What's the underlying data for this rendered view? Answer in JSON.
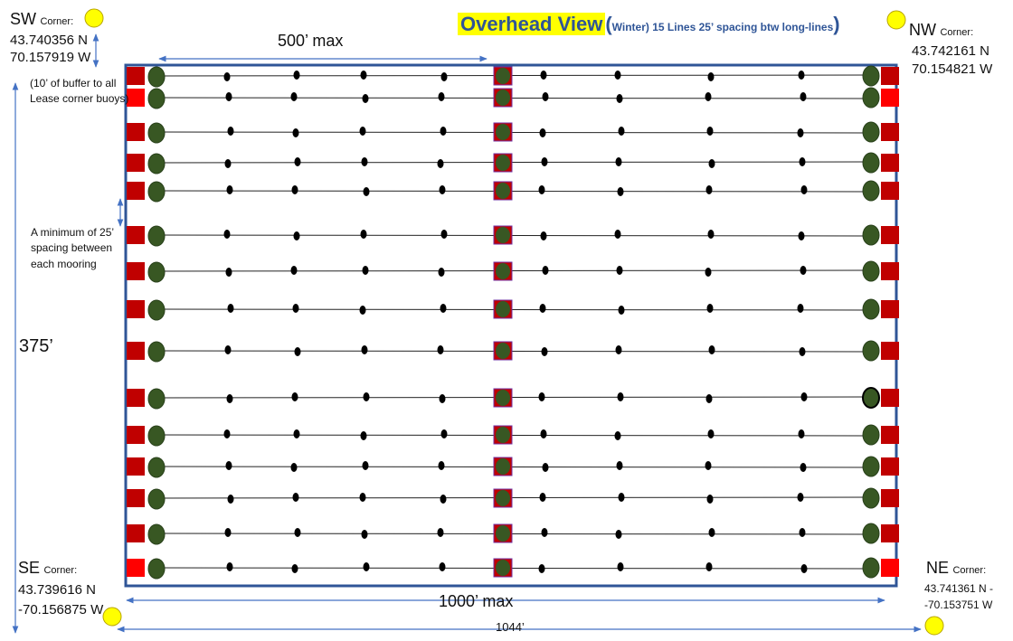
{
  "title": {
    "highlight": "Overhead View",
    "open_paren": "(",
    "subtitle": "Winter) 15 Lines 25’ spacing btw  long-lines",
    "close_paren": ")"
  },
  "corners": {
    "sw": {
      "label": "SW",
      "suffix": "Corner:",
      "lat": "43.740356 N",
      "lon": "70.157919 W"
    },
    "nw": {
      "label": "NW",
      "suffix": "Corner:",
      "lat": "43.742161 N",
      "lon": "70.154821 W"
    },
    "se": {
      "label": "SE",
      "suffix": "Corner:",
      "lat": "43.739616 N",
      "lon": "-70.156875 W"
    },
    "ne": {
      "label": "NE",
      "suffix": "Corner:",
      "lat": "43.741361 N -",
      "lon": "-70.153751 W"
    }
  },
  "annotations": {
    "buffer_note": "(10’ of buffer to all Lease corner buoys)",
    "spacing_note": "A minimum of 25’ spacing between each mooring",
    "width_half": "500’ max",
    "width_full": "1000’ max",
    "height": "375’",
    "total_width": "1044’"
  },
  "layout_info": {
    "line_count": 15,
    "buoys_per_line": 10
  },
  "colors": {
    "lease_border": "#2f5597",
    "anchor_square": "#c00000",
    "anchor_square_bright": "#ff0000",
    "mooring_circle": "#385723",
    "buoy": "#000000",
    "corner_buoy": "#ffff00",
    "dimension_arrow": "#4472c4",
    "title_text": "#2f5597",
    "title_highlight": "#ffff00"
  }
}
